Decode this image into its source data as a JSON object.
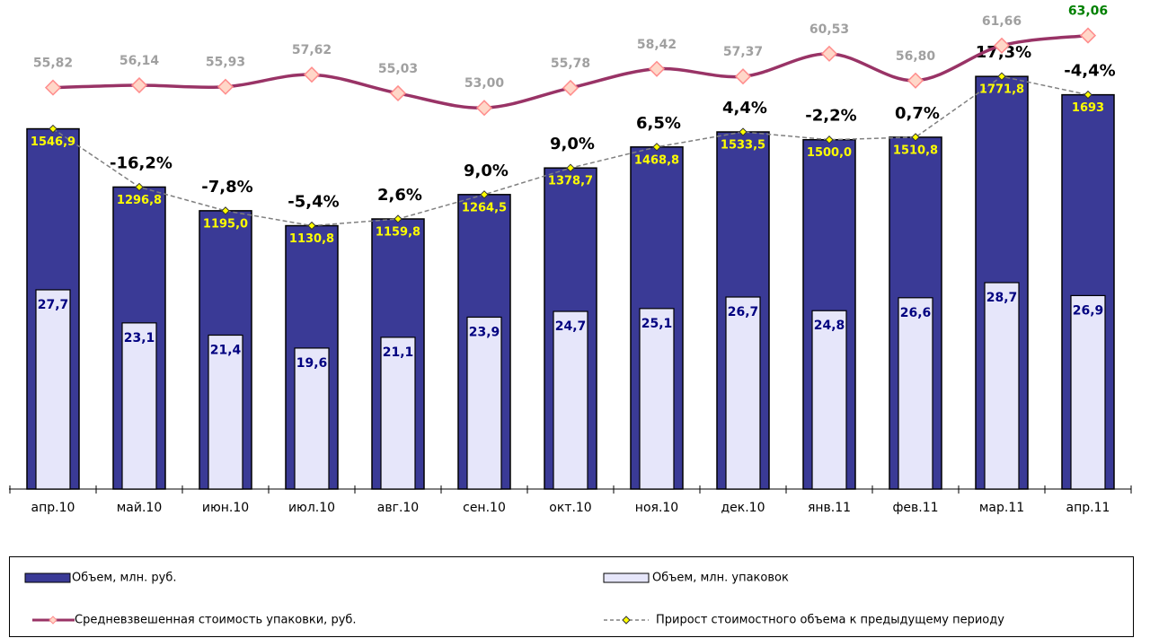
{
  "chart_data": {
    "type": "bar-line",
    "categories": [
      "апр.10",
      "май.10",
      "июн.10",
      "июл.10",
      "авг.10",
      "сен.10",
      "окт.10",
      "ноя.10",
      "дек.10",
      "янв.11",
      "фев.11",
      "мар.11",
      "апр.11"
    ],
    "ylim": [
      0,
      2100
    ],
    "y2lim": [
      0,
      68
    ],
    "series": [
      {
        "name": "Объем, млн. руб.",
        "color": "#3a3a96",
        "label_color": "#ffff00",
        "values": [
          1546.9,
          1296.8,
          1195.0,
          1130.8,
          1159.8,
          1264.5,
          1378.7,
          1468.8,
          1533.5,
          1500.0,
          1510.8,
          1771.8,
          1693
        ],
        "value_labels": [
          "1546,9",
          "1296,8",
          "1195,0",
          "1130,8",
          "1159,8",
          "1264,5",
          "1378,7",
          "1468,8",
          "1533,5",
          "1500,0",
          "1510,8",
          "1771,8",
          "1693"
        ]
      },
      {
        "name": "Объем, млн. упаковок",
        "color": "#e6e6fa",
        "label_color": "#000080",
        "axis": "y2",
        "values": [
          27.7,
          23.1,
          21.4,
          19.6,
          21.1,
          23.9,
          24.7,
          25.1,
          26.7,
          24.8,
          26.6,
          28.7,
          26.9
        ],
        "value_labels": [
          "27,7",
          "23,1",
          "21,4",
          "19,6",
          "21,1",
          "23,9",
          "24,7",
          "25,1",
          "26,7",
          "24,8",
          "26,6",
          "28,7",
          "26,9"
        ]
      },
      {
        "name": "Средневзвешенная стоимость упаковки, руб.",
        "color": "#993366",
        "label_color": "#a0a0a0",
        "last_label_color": "#008000",
        "axis": "y2",
        "values": [
          55.82,
          56.14,
          55.93,
          57.62,
          55.03,
          53.0,
          55.78,
          58.42,
          57.37,
          60.53,
          56.8,
          61.66,
          63.06
        ],
        "value_labels": [
          "55,82",
          "56,14",
          "55,93",
          "57,62",
          "55,03",
          "53,00",
          "55,78",
          "58,42",
          "57,37",
          "60,53",
          "56,80",
          "61,66",
          "63,06"
        ]
      },
      {
        "name": "Прирост стоимостного объема к предыдущему периоду",
        "color": "#808080",
        "label_color": "#000000",
        "values": [
          null,
          -16.2,
          -7.8,
          -5.4,
          2.6,
          9.0,
          9.0,
          6.5,
          4.4,
          -2.2,
          0.7,
          17.3,
          -4.4
        ],
        "value_labels": [
          null,
          "-16,2%",
          "-7,8%",
          "-5,4%",
          "2,6%",
          "9,0%",
          "9,0%",
          "6,5%",
          "4,4%",
          "-2,2%",
          "0,7%",
          "17,3%",
          "-4,4%"
        ]
      }
    ]
  }
}
